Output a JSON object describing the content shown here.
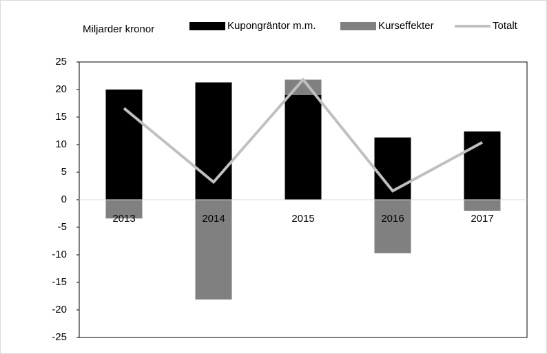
{
  "chart_data": {
    "type": "bar",
    "stacked": true,
    "y_label": "Miljarder kronor",
    "categories": [
      "2013",
      "2014",
      "2015",
      "2016",
      "2017"
    ],
    "series": [
      {
        "name": "Kupongräntor m.m.",
        "type": "bar",
        "color": "#000000",
        "values": [
          20,
          21.3,
          19,
          11.3,
          12.4
        ]
      },
      {
        "name": "Kurseffekter",
        "type": "bar",
        "color": "#808080",
        "values": [
          -3.4,
          -18.1,
          2.8,
          -9.7,
          -2.0
        ]
      },
      {
        "name": "Totalt",
        "type": "line",
        "color": "#c0c0c0",
        "values": [
          16.6,
          3.2,
          21.8,
          1.6,
          10.4
        ]
      }
    ],
    "ylim": [
      -25,
      25
    ],
    "yticks": [
      -25,
      -20,
      -15,
      -10,
      -5,
      0,
      5,
      10,
      15,
      20,
      25
    ]
  }
}
